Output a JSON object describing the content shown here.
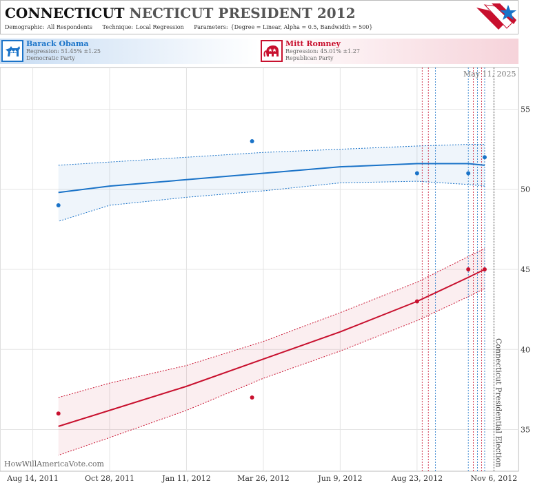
{
  "header": {
    "state": "CONNECTICUT",
    "title_rest": "NECTICUT PRESIDENT 2012",
    "demographic_label": "Demographic:",
    "demographic_value": "All Respondents",
    "technique_label": "Technique:",
    "technique_value": "Local Regression",
    "parameters_label": "Parameters:",
    "parameters_value": "{Degree = Linear, Alpha = 0.5, Bandwidth = 500}"
  },
  "candidates": {
    "dem": {
      "name": "Barack Obama",
      "regression": "Regression: 51.45% ±1.25",
      "party": "Democratic Party",
      "color": "#1a73c8"
    },
    "rep": {
      "name": "Mitt Romney",
      "regression": "Regression: 45.01% ±1.27",
      "party": "Republican Party",
      "color": "#c8102e"
    }
  },
  "watermark": "HowWillAmericaVote.com",
  "chart_data": {
    "type": "scatter",
    "date_stamp": "May 11, 2025",
    "x_ticks": [
      "2011-08-14",
      "2011-10-28",
      "2012-01-11",
      "2012-03-26",
      "2012-06-09",
      "2012-08-23",
      "2012-11-06"
    ],
    "x_tick_labels": [
      "Aug 14, 2011",
      "Oct 28, 2011",
      "Jan 11, 2012",
      "Mar 26, 2012",
      "Jun 9, 2012",
      "Aug 23, 2012",
      "Nov 6, 2012"
    ],
    "xlim": [
      "2011-07-13",
      "2012-11-30"
    ],
    "ylim": [
      32.4,
      57.6
    ],
    "y_ticks": [
      35,
      40,
      45,
      50,
      55
    ],
    "grid": true,
    "election": {
      "date": "2012-11-06",
      "label": "Connecticut Presidential Election"
    },
    "poll_lines": [
      {
        "date": "2012-08-28",
        "color": "#c8102e"
      },
      {
        "date": "2012-09-03",
        "color": "#c8102e"
      },
      {
        "date": "2012-09-10",
        "color": "#1a73c8"
      },
      {
        "date": "2012-10-12",
        "color": "#1a73c8"
      },
      {
        "date": "2012-10-17",
        "color": "#c8102e"
      },
      {
        "date": "2012-10-21",
        "color": "#1a73c8"
      },
      {
        "date": "2012-10-25",
        "color": "#c8102e"
      },
      {
        "date": "2012-10-28",
        "color": "#1a73c8"
      }
    ],
    "series": [
      {
        "name": "Barack Obama",
        "color": "#1a73c8",
        "points": [
          {
            "x": "2011-09-08",
            "y": 49.0
          },
          {
            "x": "2012-03-15",
            "y": 53.0
          },
          {
            "x": "2012-08-23",
            "y": 51.0
          },
          {
            "x": "2012-10-12",
            "y": 51.0
          },
          {
            "x": "2012-10-28",
            "y": 52.0
          }
        ],
        "fit_x": [
          "2011-09-08",
          "2011-10-28",
          "2012-01-11",
          "2012-03-26",
          "2012-06-09",
          "2012-08-23",
          "2012-10-12",
          "2012-10-28"
        ],
        "fit_y": [
          49.8,
          50.2,
          50.6,
          51.0,
          51.4,
          51.6,
          51.6,
          51.5
        ],
        "upper": [
          51.5,
          51.7,
          52.0,
          52.3,
          52.5,
          52.7,
          52.8,
          52.8
        ],
        "lower": [
          48.0,
          49.0,
          49.5,
          49.9,
          50.4,
          50.5,
          50.3,
          50.2
        ]
      },
      {
        "name": "Mitt Romney",
        "color": "#c8102e",
        "points": [
          {
            "x": "2011-09-08",
            "y": 36.0
          },
          {
            "x": "2012-03-15",
            "y": 37.0
          },
          {
            "x": "2012-08-23",
            "y": 43.0
          },
          {
            "x": "2012-10-12",
            "y": 45.0
          },
          {
            "x": "2012-10-28",
            "y": 45.0
          }
        ],
        "fit_x": [
          "2011-09-08",
          "2011-10-28",
          "2012-01-11",
          "2012-03-26",
          "2012-06-09",
          "2012-08-23",
          "2012-10-12",
          "2012-10-28"
        ],
        "fit_y": [
          35.2,
          36.2,
          37.7,
          39.4,
          41.1,
          43.0,
          44.5,
          45.0
        ],
        "upper": [
          37.0,
          37.9,
          39.0,
          40.5,
          42.3,
          44.2,
          45.8,
          46.3
        ],
        "lower": [
          33.4,
          34.5,
          36.2,
          38.2,
          39.9,
          41.8,
          43.3,
          43.8
        ]
      }
    ]
  }
}
